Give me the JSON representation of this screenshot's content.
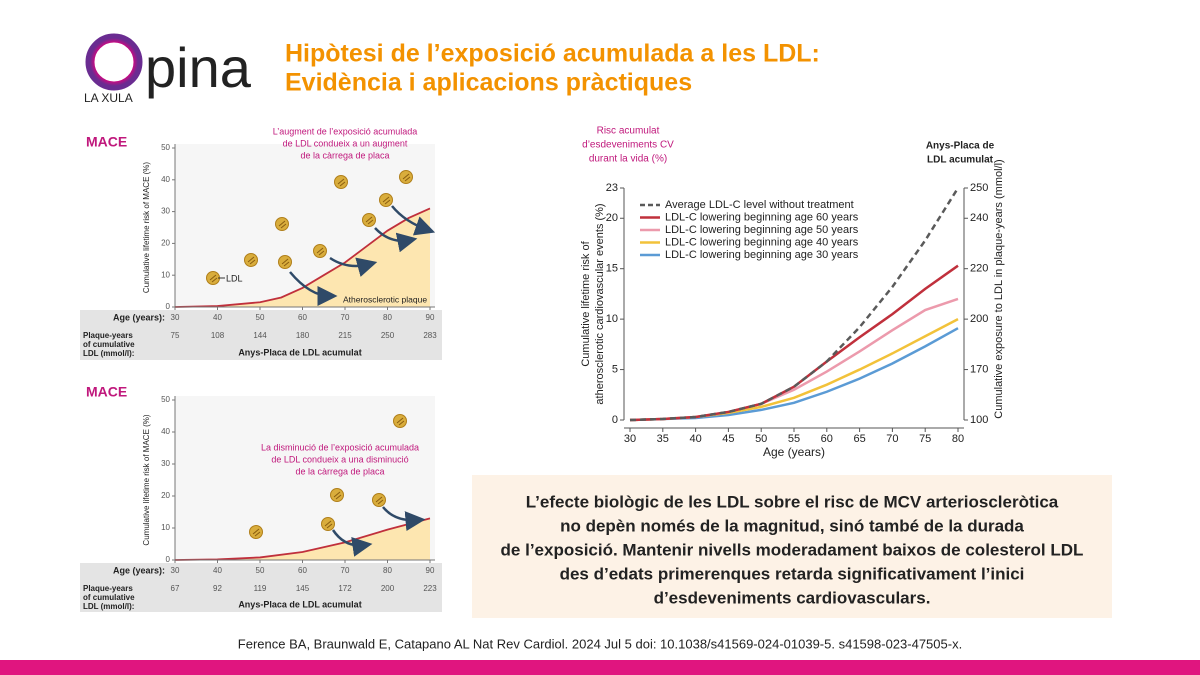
{
  "header": {
    "logo_word": "pina",
    "logo_sub": "LA XULA",
    "title_lines": [
      "Hipòtesi de l’exposició acumulada a les LDL:",
      "Evidència i aplicacions pràctiques"
    ]
  },
  "chart_data": [
    {
      "type": "line",
      "label": "MACE",
      "annotation": [
        "L’augment de l’exposició acumulada",
        "de LDL condueix a un augment",
        "de la càrrega de placa"
      ],
      "ylabel": "Cumulative lifetime risk of MACE (%)",
      "xlabel": "Age (years):",
      "row_label": [
        "Plaque-years",
        "of cumulative",
        "LDL (mmol/l):"
      ],
      "row_values": [
        75,
        108,
        144,
        180,
        215,
        250,
        283
      ],
      "caption": "Anys-Placa de LDL acumulat",
      "plaque_label": "Atherosclerotic plaque",
      "particle_label": "LDL",
      "x": [
        30,
        40,
        50,
        55,
        60,
        65,
        70,
        75,
        80,
        85,
        90
      ],
      "values": [
        0,
        0.3,
        1.5,
        3,
        6,
        10,
        14,
        19,
        24,
        28,
        31
      ],
      "color": "#c0303c",
      "fill": "#fde6b0",
      "xlim": [
        30,
        90
      ],
      "xticks": [
        30,
        40,
        50,
        60,
        70,
        80,
        90
      ],
      "ylim": [
        0,
        50
      ],
      "yticks": [
        0,
        10,
        20,
        30,
        40,
        50
      ]
    },
    {
      "type": "line",
      "label": "MACE",
      "annotation": [
        "La disminució de l’exposició acumulada",
        "de LDL condueix a una disminució",
        "de la càrrega de placa"
      ],
      "ylabel": "Cumulative lifetime risk of MACE (%)",
      "xlabel": "Age (years):",
      "row_label": [
        "Plaque-years",
        "of cumulative",
        "LDL (mmol/l):"
      ],
      "row_values": [
        67,
        92,
        119,
        145,
        172,
        200,
        223
      ],
      "caption": "Anys-Placa de LDL acumulat",
      "x": [
        30,
        40,
        50,
        60,
        70,
        80,
        90
      ],
      "values": [
        0,
        0.2,
        0.8,
        2.5,
        5.5,
        9.5,
        13
      ],
      "color": "#c0303c",
      "fill": "#fde6b0",
      "xlim": [
        30,
        90
      ],
      "xticks": [
        30,
        40,
        50,
        60,
        70,
        80,
        90
      ],
      "ylim": [
        0,
        50
      ],
      "yticks": [
        0,
        10,
        20,
        30,
        40,
        50
      ]
    },
    {
      "type": "line",
      "title_lines": [
        "Risc acumulat",
        "d’esdeveniments CV",
        "durant la vida (%)"
      ],
      "y2_title_lines": [
        "Anys-Placa de",
        "LDL acumulat"
      ],
      "ylabel_lines": [
        "Cumulative lifetime risk of",
        "atherosclerotic cardiovascular events (%)"
      ],
      "y2label": "Cumulative exposure to LDL in plaque-years (mmol/l)",
      "xlabel": "Age (years)",
      "x": [
        30,
        35,
        40,
        45,
        50,
        55,
        60,
        65,
        70,
        75,
        80
      ],
      "series": [
        {
          "name": "Average LDL-C level without treatment",
          "color": "#5a5a5a",
          "linestyle": "dashed",
          "values": [
            0,
            0.1,
            0.3,
            0.8,
            1.6,
            3.3,
            5.8,
            9.2,
            13.2,
            17.8,
            23
          ]
        },
        {
          "name": "LDL-C lowering beginning age 60 years",
          "color": "#c0303c",
          "linestyle": "solid",
          "values": [
            0,
            0.1,
            0.3,
            0.8,
            1.6,
            3.3,
            5.8,
            8.2,
            10.5,
            13,
            15.3
          ]
        },
        {
          "name": "LDL-C lowering beginning age 50 years",
          "color": "#ec9aac",
          "linestyle": "solid",
          "values": [
            0,
            0.1,
            0.3,
            0.8,
            1.6,
            3.0,
            4.8,
            6.8,
            8.9,
            10.9,
            12
          ]
        },
        {
          "name": "LDL-C lowering beginning age 40 years",
          "color": "#f2c23a",
          "linestyle": "solid",
          "values": [
            0,
            0.1,
            0.3,
            0.7,
            1.3,
            2.2,
            3.5,
            5.0,
            6.6,
            8.3,
            10
          ]
        },
        {
          "name": "LDL-C lowering beginning age 30 years",
          "color": "#5b9bd5",
          "linestyle": "solid",
          "values": [
            0,
            0.1,
            0.2,
            0.5,
            1.0,
            1.7,
            2.8,
            4.1,
            5.6,
            7.3,
            9.1
          ]
        }
      ],
      "xlim": [
        30,
        80
      ],
      "xticks": [
        30,
        35,
        40,
        45,
        50,
        55,
        60,
        65,
        70,
        75,
        80
      ],
      "ylim": [
        0,
        23
      ],
      "yticks": [
        0,
        5,
        10,
        15,
        20,
        23
      ],
      "y2ticks": [
        100,
        170,
        200,
        220,
        240,
        250
      ]
    }
  ],
  "summary_lines": [
    "L’efecte biològic de les LDL sobre el risc de MCV arterioscleròtica",
    "no depèn només de la magnitud, sinó també de la durada",
    "de l’exposició. Mantenir nivells moderadament baixos de colesterol LDL",
    "des d’edats primerenques retarda significativament l’inici",
    "d’esdeveniments cardiovasculars."
  ],
  "citation": "Ference BA,  Braunwald E, Catapano AL Nat Rev Cardiol. 2024 Jul 5 doi: 10.1038/s41569-024-01039-5. s41598-023-47505-x."
}
